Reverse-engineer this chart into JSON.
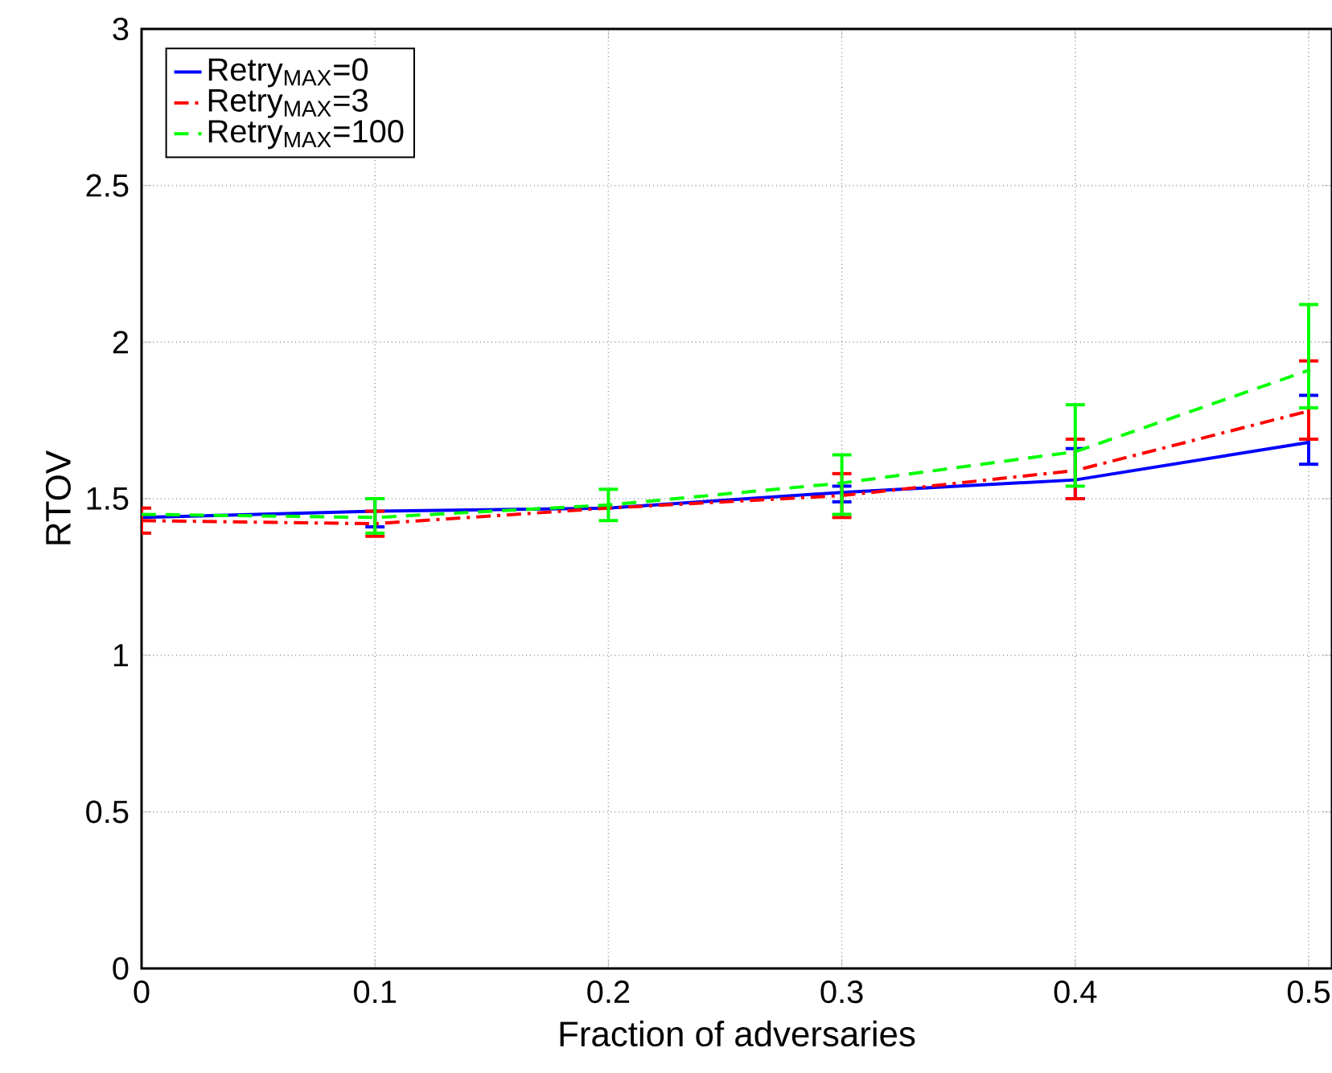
{
  "chart_data": {
    "type": "line",
    "xlabel": "Fraction of adversaries",
    "ylabel": "RTOV",
    "x": [
      0,
      0.1,
      0.2,
      0.3,
      0.4,
      0.5
    ],
    "xlim": [
      0,
      0.51
    ],
    "ylim": [
      0,
      3
    ],
    "xticks": [
      0,
      0.1,
      0.2,
      0.3,
      0.4,
      0.5
    ],
    "yticks": [
      0,
      0.5,
      1,
      1.5,
      2,
      2.5,
      3
    ],
    "grid": true,
    "legend": "top left",
    "marker": "none",
    "series": [
      {
        "name": "Retry$_{MAX}$=0",
        "color": "#0000ff",
        "line_style": "solid",
        "values": [
          1.44,
          1.46,
          1.47,
          1.52,
          1.56,
          1.68
        ],
        "errors": [
          null,
          [
            1.41,
            1.5
          ],
          null,
          [
            1.49,
            1.54
          ],
          [
            1.5,
            1.66
          ],
          [
            1.61,
            1.83
          ]
        ]
      },
      {
        "name": "Retry$_{MAX}$=3",
        "color": "#ff0000",
        "line_style": "dashdot",
        "values": [
          1.43,
          1.42,
          1.47,
          1.51,
          1.59,
          1.78
        ],
        "errors": [
          [
            1.39,
            1.47
          ],
          [
            1.38,
            1.46
          ],
          null,
          [
            1.44,
            1.58
          ],
          [
            1.5,
            1.69
          ],
          [
            1.69,
            1.94
          ]
        ]
      },
      {
        "name": "Retry$_{MAX}$=100",
        "color": "#00ff00",
        "line_style": "dashed",
        "values": [
          1.45,
          1.44,
          1.48,
          1.55,
          1.65,
          1.91
        ],
        "errors": [
          null,
          [
            1.39,
            1.5
          ],
          [
            1.43,
            1.53
          ],
          [
            1.45,
            1.64
          ],
          [
            1.54,
            1.8
          ],
          [
            1.79,
            2.12
          ]
        ]
      }
    ]
  }
}
